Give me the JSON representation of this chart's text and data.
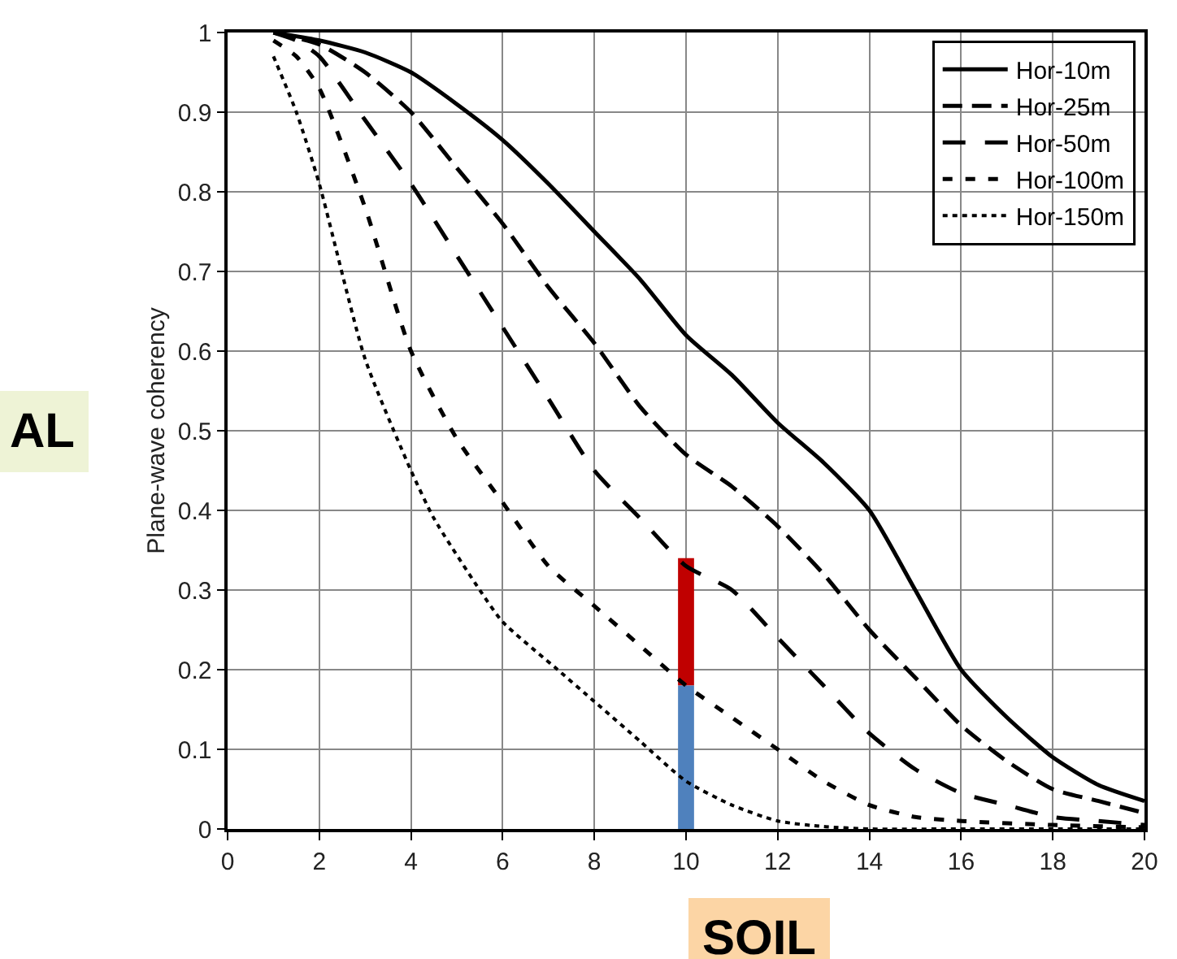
{
  "chart_data": {
    "type": "line",
    "ylabel": "Plane-wave coherency",
    "xlim": [
      0,
      20
    ],
    "xticks": [
      0,
      2,
      4,
      6,
      8,
      10,
      12,
      14,
      16,
      18,
      20
    ],
    "ylim": [
      0,
      1
    ],
    "yticks": [
      0,
      0.1,
      0.2,
      0.3,
      0.4,
      0.5,
      0.6,
      0.7,
      0.8,
      0.9,
      1
    ],
    "grid": true,
    "legend": "top right",
    "marker": "none",
    "series": [
      {
        "name": "Hor-10m",
        "color": "#000000",
        "line_style": "solid",
        "x": [
          1,
          2,
          3,
          4,
          5,
          6,
          7,
          8,
          9,
          10,
          11,
          12,
          13,
          14,
          15,
          16,
          17,
          18,
          19,
          20
        ],
        "values": [
          1.0,
          0.99,
          0.975,
          0.95,
          0.91,
          0.865,
          0.81,
          0.75,
          0.69,
          0.62,
          0.57,
          0.51,
          0.46,
          0.4,
          0.3,
          0.2,
          0.14,
          0.09,
          0.055,
          0.035
        ]
      },
      {
        "name": "Hor-25m",
        "color": "#000000",
        "line_style": "dashed",
        "x": [
          1,
          2,
          3,
          4,
          5,
          6,
          7,
          8,
          9,
          10,
          11,
          12,
          13,
          14,
          15,
          16,
          17,
          18,
          19,
          20
        ],
        "values": [
          1.0,
          0.985,
          0.95,
          0.9,
          0.83,
          0.76,
          0.68,
          0.61,
          0.53,
          0.47,
          0.43,
          0.38,
          0.32,
          0.25,
          0.19,
          0.13,
          0.085,
          0.05,
          0.035,
          0.02
        ]
      },
      {
        "name": "Hor-50m",
        "color": "#000000",
        "line_style": "dashed",
        "x": [
          1,
          1.5,
          2,
          3,
          4,
          5,
          6,
          7,
          8,
          9,
          10,
          11,
          12,
          13,
          14,
          15,
          16,
          17,
          18,
          19,
          20
        ],
        "values": [
          1.0,
          0.99,
          0.97,
          0.89,
          0.81,
          0.72,
          0.63,
          0.54,
          0.45,
          0.39,
          0.33,
          0.3,
          0.24,
          0.18,
          0.12,
          0.075,
          0.045,
          0.03,
          0.015,
          0.01,
          0.005
        ]
      },
      {
        "name": "Hor-100m",
        "color": "#000000",
        "line_style": "dashed",
        "x": [
          1,
          1.5,
          2,
          3,
          4,
          5,
          6,
          7,
          8,
          9,
          10,
          11,
          12,
          13,
          14,
          15,
          16,
          18,
          20
        ],
        "values": [
          0.99,
          0.97,
          0.93,
          0.78,
          0.6,
          0.49,
          0.41,
          0.33,
          0.28,
          0.23,
          0.18,
          0.14,
          0.1,
          0.06,
          0.03,
          0.015,
          0.01,
          0.005,
          0.002
        ]
      },
      {
        "name": "Hor-150m",
        "color": "#000000",
        "line_style": "dotted",
        "x": [
          1,
          1.5,
          2,
          3,
          4,
          4.5,
          5.5,
          6,
          7.2,
          8,
          9,
          10,
          11,
          12,
          13,
          14,
          16,
          18,
          20
        ],
        "values": [
          0.97,
          0.9,
          0.81,
          0.59,
          0.45,
          0.39,
          0.3,
          0.26,
          0.2,
          0.16,
          0.11,
          0.06,
          0.03,
          0.01,
          0.003,
          0,
          0,
          0,
          0
        ]
      },
      {
        "type": "bar",
        "color": "#c00000",
        "x": [
          10
        ],
        "base": [
          0.18
        ],
        "values": [
          0.16
        ]
      },
      {
        "type": "bar",
        "color": "#4f81bd",
        "x": [
          10
        ],
        "base": [
          0
        ],
        "values": [
          0.18
        ]
      }
    ],
    "annotations": [
      "SOIL",
      "AL"
    ]
  }
}
